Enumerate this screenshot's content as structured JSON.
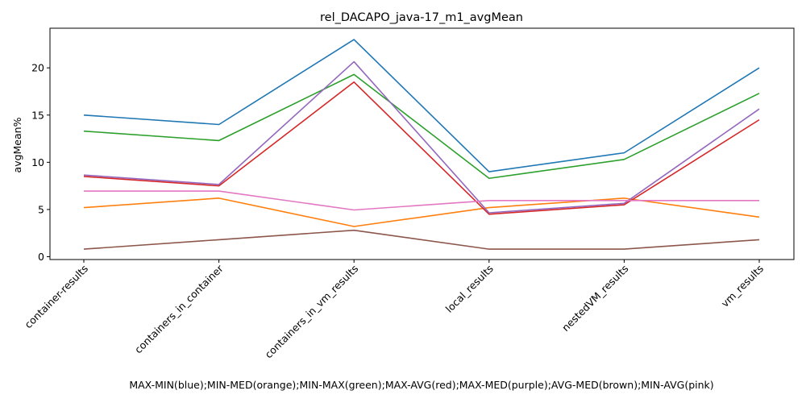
{
  "chart_data": {
    "type": "line",
    "title": "rel_DACAPO_java-17_m1_avgMean",
    "xlabel": "MAX-MIN(blue);MIN-MED(orange);MIN-MAX(green);MAX-AVG(red);MAX-MED(purple);AVG-MED(brown);MIN-AVG(pink)",
    "ylabel": "avgMean%",
    "categories": [
      "container-results",
      "containers_in_container",
      "containers_in_vm_results",
      "local_results",
      "nestedVM_results",
      "vm_results"
    ],
    "yticks": [
      0,
      5,
      10,
      15,
      20
    ],
    "ylim": [
      -0.3,
      24.2
    ],
    "grid": false,
    "series": [
      {
        "color": "#1f77b4",
        "values": [
          15.0,
          14.0,
          23.0,
          9.0,
          11.0,
          20.0
        ]
      },
      {
        "color": "#ff7f0e",
        "values": [
          5.2,
          6.2,
          3.2,
          5.2,
          6.2,
          4.2
        ]
      },
      {
        "color": "#2ca02c",
        "values": [
          13.3,
          12.3,
          19.3,
          8.3,
          10.3,
          17.3
        ]
      },
      {
        "color": "#d62728",
        "values": [
          8.5,
          7.5,
          18.5,
          4.5,
          5.5,
          14.5
        ]
      },
      {
        "color": "#9467bd",
        "values": [
          8.65,
          7.65,
          20.65,
          4.65,
          5.65,
          15.65
        ]
      },
      {
        "color": "#8c564b",
        "values": [
          0.8,
          1.8,
          2.8,
          0.8,
          0.8,
          1.8
        ]
      },
      {
        "color": "#e377c2",
        "values": [
          6.95,
          6.95,
          4.95,
          5.95,
          5.95,
          5.95
        ]
      }
    ]
  }
}
